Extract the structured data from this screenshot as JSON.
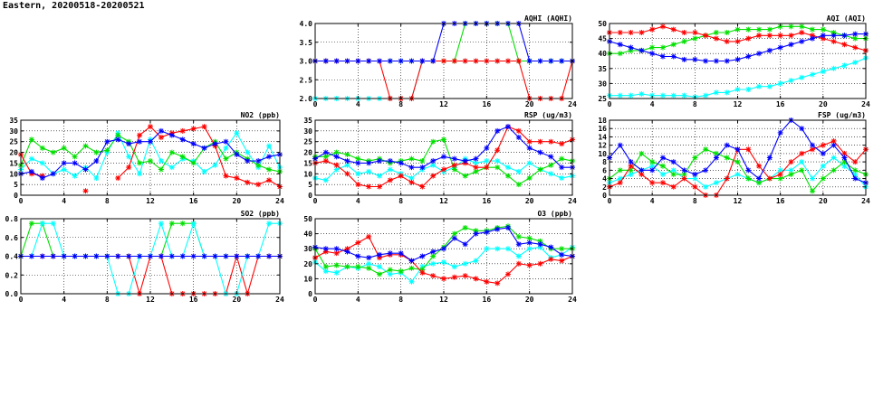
{
  "page_title": "Eastern, 20200518-20200521",
  "colors": {
    "red": "#ff0000",
    "green": "#00e000",
    "blue": "#0000ff",
    "cyan": "#00ffff"
  },
  "chart_data": [
    {
      "id": "aqhi",
      "type": "line",
      "title": "AQHI (AQHI)",
      "xlim": [
        0,
        24
      ],
      "ylim": [
        2.0,
        4.0
      ],
      "xticks": [
        0,
        4,
        8,
        12,
        16,
        20,
        24
      ],
      "yticks": [
        "2.0",
        "2.5",
        "3.0",
        "3.5",
        "4.0"
      ],
      "grid": true,
      "series": [
        {
          "color": "cyan",
          "values": [
            2,
            2,
            2,
            2,
            2,
            2,
            2,
            2,
            2,
            2,
            3,
            3,
            3,
            3,
            3,
            3,
            3,
            3,
            3,
            3,
            3,
            3,
            3,
            3,
            3
          ]
        },
        {
          "color": "green",
          "values": [
            3,
            3,
            3,
            3,
            3,
            3,
            3,
            3,
            3,
            3,
            3,
            3,
            3,
            3,
            4,
            4,
            4,
            4,
            4,
            3,
            3,
            3,
            3,
            3,
            3
          ]
        },
        {
          "color": "red",
          "values": [
            3,
            3,
            3,
            3,
            3,
            3,
            3,
            2,
            2,
            2,
            3,
            3,
            3,
            3,
            3,
            3,
            3,
            3,
            3,
            3,
            2,
            2,
            2,
            2,
            3
          ]
        },
        {
          "color": "blue",
          "values": [
            3,
            3,
            3,
            3,
            3,
            3,
            3,
            3,
            3,
            3,
            3,
            3,
            4,
            4,
            4,
            4,
            4,
            4,
            4,
            4,
            3,
            3,
            3,
            3,
            3
          ]
        }
      ]
    },
    {
      "id": "aqi",
      "type": "line",
      "title": "AQI (AQI)",
      "xlim": [
        0,
        24
      ],
      "ylim": [
        25,
        50
      ],
      "xticks": [
        0,
        4,
        8,
        12,
        16,
        20,
        24
      ],
      "yticks": [
        "25",
        "30",
        "35",
        "40",
        "45",
        "50"
      ],
      "grid": true,
      "series": [
        {
          "color": "cyan",
          "values": [
            26,
            26,
            26,
            26.5,
            26,
            26,
            26,
            26,
            25.5,
            26,
            27,
            27,
            28,
            28,
            29,
            29,
            30,
            31,
            32,
            33,
            34,
            35,
            36,
            37,
            38.5
          ]
        },
        {
          "color": "green",
          "values": [
            40,
            40,
            41,
            41,
            42,
            42,
            43,
            44,
            45,
            46,
            47,
            47,
            48,
            48,
            48,
            48,
            49,
            49,
            49,
            48,
            48,
            47,
            46,
            45,
            45
          ]
        },
        {
          "color": "red",
          "values": [
            47,
            47,
            47,
            47,
            48,
            49,
            48,
            47,
            47,
            46,
            45,
            44,
            44,
            45,
            46,
            46,
            46,
            46,
            47,
            46,
            45,
            44,
            43,
            42,
            41
          ]
        },
        {
          "color": "blue",
          "values": [
            44,
            43,
            42,
            41,
            40,
            39,
            39,
            38,
            38,
            37.5,
            37.5,
            37.5,
            38,
            39,
            40,
            41,
            42,
            43,
            44,
            45,
            46,
            46,
            46,
            46.5,
            46.5
          ]
        }
      ]
    },
    {
      "id": "no2",
      "type": "line",
      "title": "NO2 (ppb)",
      "xlim": [
        0,
        24
      ],
      "ylim": [
        0,
        35
      ],
      "xticks": [
        0,
        4,
        8,
        12,
        16,
        20,
        24
      ],
      "yticks": [
        "0",
        "5",
        "10",
        "15",
        "20",
        "25",
        "30",
        "35"
      ],
      "grid": true,
      "series": [
        {
          "color": "cyan",
          "values": [
            12,
            17,
            15,
            10,
            12,
            9,
            13,
            8,
            20,
            29,
            18,
            10,
            26,
            16,
            13,
            17,
            16,
            11,
            14,
            22,
            29,
            20,
            13,
            23,
            13
          ]
        },
        {
          "color": "green",
          "values": [
            14,
            26,
            22,
            20,
            22,
            18,
            23,
            20,
            21,
            28,
            25,
            15,
            16,
            12,
            20,
            18,
            15,
            22,
            25,
            17,
            20,
            17,
            14,
            12,
            11
          ]
        },
        {
          "color": "red",
          "values": [
            19,
            10,
            9,
            null,
            null,
            null,
            2,
            null,
            null,
            8,
            13,
            28,
            32,
            27,
            29,
            30,
            31,
            32,
            23,
            9,
            8,
            6,
            5,
            7,
            4
          ]
        },
        {
          "color": "blue",
          "values": [
            10,
            11,
            8,
            10,
            15,
            15,
            12,
            16,
            25,
            26,
            24,
            25,
            25,
            30,
            28,
            26,
            24,
            22,
            24,
            25,
            19,
            16,
            16,
            18,
            19
          ]
        }
      ]
    },
    {
      "id": "rsp",
      "type": "line",
      "title": "RSP (ug/m3)",
      "xlim": [
        0,
        24
      ],
      "ylim": [
        0,
        35
      ],
      "xticks": [
        0,
        4,
        8,
        12,
        16,
        20,
        24
      ],
      "yticks": [
        "0",
        "5",
        "10",
        "15",
        "20",
        "25",
        "30",
        "35"
      ],
      "grid": true,
      "series": [
        {
          "color": "cyan",
          "values": [
            8,
            7,
            12,
            14,
            10,
            11,
            9,
            12,
            10,
            8,
            12,
            14,
            11,
            13,
            17,
            15,
            16,
            16,
            13,
            11,
            15,
            12,
            10,
            8,
            9
          ]
        },
        {
          "color": "green",
          "values": [
            18,
            18,
            20,
            19,
            17,
            16,
            17,
            15,
            16,
            17,
            16,
            25,
            26,
            12,
            9,
            11,
            13,
            13,
            9,
            5,
            8,
            12,
            14,
            17,
            16
          ]
        },
        {
          "color": "red",
          "values": [
            15,
            16,
            14,
            10,
            5,
            4,
            4,
            7,
            9,
            6,
            4,
            9,
            12,
            14,
            15,
            13,
            13,
            21,
            32,
            30,
            25,
            25,
            25,
            24,
            26
          ]
        },
        {
          "color": "blue",
          "values": [
            17,
            20,
            18,
            16,
            15,
            15,
            16,
            16,
            15,
            13,
            13,
            16,
            18,
            17,
            16,
            17,
            22,
            30,
            32,
            27,
            22,
            20,
            18,
            13,
            13
          ]
        }
      ]
    },
    {
      "id": "fsp",
      "type": "line",
      "title": "FSP (ug/m3)",
      "xlim": [
        0,
        24
      ],
      "ylim": [
        0,
        18
      ],
      "xticks": [
        0,
        4,
        8,
        12,
        16,
        20,
        24
      ],
      "yticks": [
        "0",
        "2",
        "4",
        "6",
        "8",
        "10",
        "12",
        "14",
        "16",
        "18"
      ],
      "grid": true,
      "series": [
        {
          "color": "cyan",
          "values": [
            3,
            4,
            5,
            6,
            7,
            5,
            6,
            4,
            4,
            2,
            3,
            4,
            5,
            4,
            3,
            4,
            6,
            6,
            8,
            4,
            7,
            9,
            7,
            5,
            2
          ]
        },
        {
          "color": "green",
          "values": [
            4,
            6,
            6,
            10,
            8,
            7,
            5,
            5,
            9,
            11,
            10,
            9,
            8,
            4,
            3,
            4,
            4,
            5,
            6,
            1,
            4,
            6,
            8,
            6,
            5
          ]
        },
        {
          "color": "red",
          "values": [
            2,
            3,
            7,
            5,
            3,
            3,
            2,
            4,
            2,
            0,
            0,
            4,
            11,
            11,
            7,
            4,
            5,
            8,
            10,
            11,
            12,
            13,
            10,
            8,
            11
          ]
        },
        {
          "color": "blue",
          "values": [
            9,
            12,
            8,
            6,
            6,
            9,
            8,
            6,
            5,
            6,
            9,
            12,
            11,
            6,
            4,
            9,
            15,
            18,
            16,
            12,
            10,
            12,
            9,
            4,
            3
          ]
        }
      ]
    },
    {
      "id": "so2",
      "type": "line",
      "title": "SO2 (ppb)",
      "xlim": [
        0,
        24
      ],
      "ylim": [
        0.0,
        0.8
      ],
      "xticks": [
        0,
        4,
        8,
        12,
        16,
        20,
        24
      ],
      "yticks": [
        "0.0",
        "0.2",
        "0.4",
        "0.6",
        "0.8"
      ],
      "grid": true,
      "series": [
        {
          "color": "green",
          "values": [
            0.4,
            0.75,
            0.75,
            0.4,
            0.4,
            0.4,
            0.4,
            0.4,
            0.4,
            0.4,
            0.4,
            0.4,
            0.4,
            0.4,
            0.75,
            0.75,
            0.75,
            0.4,
            0.4,
            0.4,
            0.4,
            0.4,
            0.4,
            0.4,
            0.4
          ]
        },
        {
          "color": "red",
          "values": [
            0.4,
            0.4,
            0.4,
            0.4,
            0.4,
            0.4,
            0.4,
            0.4,
            0.4,
            0.4,
            0.4,
            0.0,
            0.4,
            0.4,
            0.0,
            0.0,
            0.0,
            0.0,
            0.0,
            0.0,
            0.4,
            0.0,
            0.4,
            0.4,
            0.4
          ]
        },
        {
          "color": "cyan",
          "values": [
            0.4,
            0.4,
            0.75,
            0.75,
            0.4,
            0.4,
            0.4,
            0.4,
            0.4,
            0.0,
            0.0,
            0.4,
            0.4,
            0.75,
            0.4,
            0.4,
            0.75,
            0.4,
            0.4,
            0.0,
            0.0,
            0.4,
            0.4,
            0.75,
            0.75
          ]
        },
        {
          "color": "blue",
          "values": [
            0.4,
            0.4,
            0.4,
            0.4,
            0.4,
            0.4,
            0.4,
            0.4,
            0.4,
            0.4,
            0.4,
            0.4,
            0.4,
            0.4,
            0.4,
            0.4,
            0.4,
            0.4,
            0.4,
            0.4,
            0.4,
            0.4,
            0.4,
            0.4,
            0.4
          ]
        }
      ]
    },
    {
      "id": "o3",
      "type": "line",
      "title": "O3 (ppb)",
      "xlim": [
        0,
        24
      ],
      "ylim": [
        0,
        50
      ],
      "xticks": [
        0,
        4,
        8,
        12,
        16,
        20,
        24
      ],
      "yticks": [
        "0",
        "10",
        "20",
        "30",
        "40",
        "50"
      ],
      "grid": true,
      "series": [
        {
          "color": "cyan",
          "values": [
            21,
            15,
            14,
            18,
            17,
            20,
            18,
            13,
            14,
            8,
            18,
            20,
            21,
            18,
            20,
            22,
            30,
            30,
            30,
            25,
            30,
            31,
            24,
            26,
            31
          ]
        },
        {
          "color": "green",
          "values": [
            30,
            18,
            19,
            18,
            18,
            17,
            13,
            16,
            15,
            17,
            16,
            25,
            31,
            40,
            44,
            42,
            42,
            44,
            45,
            38,
            37,
            35,
            30,
            30,
            30
          ]
        },
        {
          "color": "red",
          "values": [
            24,
            28,
            27,
            30,
            34,
            38,
            24,
            26,
            26,
            22,
            14,
            12,
            10,
            11,
            12,
            10,
            8,
            7,
            13,
            20,
            19,
            20,
            23,
            22,
            25
          ]
        },
        {
          "color": "blue",
          "values": [
            31,
            30,
            30,
            28,
            25,
            24,
            26,
            27,
            27,
            22,
            25,
            28,
            30,
            37,
            33,
            40,
            41,
            43,
            44,
            33,
            34,
            33,
            31,
            26,
            25
          ]
        }
      ]
    }
  ]
}
